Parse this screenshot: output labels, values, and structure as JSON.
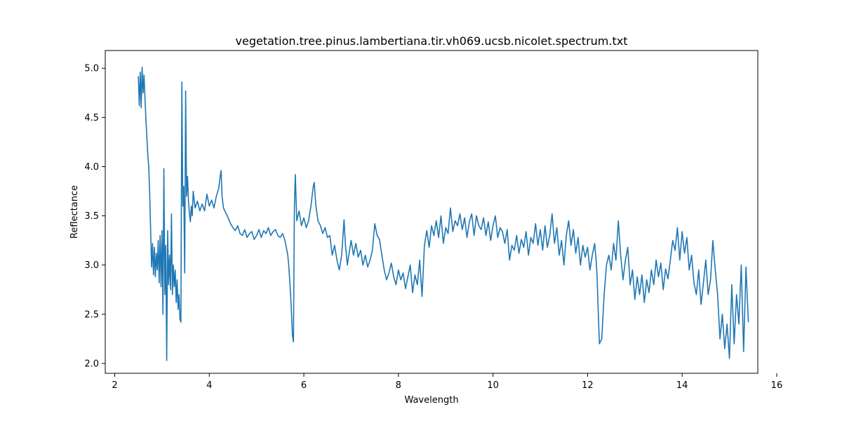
{
  "chart_data": {
    "type": "line",
    "title": "vegetation.tree.pinus.lambertiana.tir.vh069.ucsb.nicolet.spectrum.txt",
    "xlabel": "Wavelength",
    "ylabel": "Reflectance",
    "xlim": [
      1.8,
      15.6
    ],
    "ylim": [
      1.9,
      5.18
    ],
    "xticks": [
      2,
      4,
      6,
      8,
      10,
      12,
      14,
      16
    ],
    "yticks": [
      2.0,
      2.5,
      3.0,
      3.5,
      4.0,
      4.5,
      5.0
    ],
    "grid": false,
    "legend": "none",
    "series_color": "#1f77b4",
    "series": [
      {
        "x": [
          2.5,
          2.52,
          2.54,
          2.56,
          2.58,
          2.6,
          2.62,
          2.64,
          2.66,
          2.68,
          2.7,
          2.72,
          2.74,
          2.76,
          2.78,
          2.8,
          2.82,
          2.84,
          2.86,
          2.88,
          2.9,
          2.92,
          2.94,
          2.96,
          2.98,
          3.0,
          3.02,
          3.04,
          3.06,
          3.08,
          3.1,
          3.12,
          3.14,
          3.16,
          3.18,
          3.2,
          3.22,
          3.24,
          3.26,
          3.28,
          3.3,
          3.32,
          3.34,
          3.36,
          3.38,
          3.4,
          3.42,
          3.44,
          3.46,
          3.48,
          3.5,
          3.52,
          3.54,
          3.56,
          3.58,
          3.6,
          3.62,
          3.64,
          3.66,
          3.7,
          3.75,
          3.8,
          3.85,
          3.9,
          3.95,
          4.0,
          4.05,
          4.1,
          4.15,
          4.2,
          4.23,
          4.25,
          4.27,
          4.3,
          4.33,
          4.36,
          4.4,
          4.45,
          4.5,
          4.55,
          4.6,
          4.65,
          4.7,
          4.75,
          4.8,
          4.85,
          4.9,
          4.95,
          5.0,
          5.05,
          5.1,
          5.15,
          5.2,
          5.25,
          5.3,
          5.35,
          5.4,
          5.45,
          5.5,
          5.55,
          5.6,
          5.63,
          5.66,
          5.68,
          5.7,
          5.72,
          5.74,
          5.76,
          5.78,
          5.8,
          5.82,
          5.85,
          5.9,
          5.95,
          6.0,
          6.05,
          6.1,
          6.15,
          6.2,
          6.22,
          6.25,
          6.3,
          6.35,
          6.4,
          6.45,
          6.5,
          6.55,
          6.6,
          6.65,
          6.7,
          6.75,
          6.8,
          6.85,
          6.88,
          6.92,
          6.95,
          7.0,
          7.05,
          7.1,
          7.15,
          7.2,
          7.25,
          7.3,
          7.35,
          7.4,
          7.45,
          7.5,
          7.55,
          7.6,
          7.65,
          7.7,
          7.75,
          7.8,
          7.85,
          7.9,
          7.95,
          8.0,
          8.05,
          8.1,
          8.15,
          8.2,
          8.25,
          8.3,
          8.35,
          8.4,
          8.45,
          8.5,
          8.55,
          8.6,
          8.65,
          8.7,
          8.75,
          8.8,
          8.85,
          8.9,
          8.95,
          9.0,
          9.05,
          9.1,
          9.15,
          9.2,
          9.25,
          9.3,
          9.35,
          9.4,
          9.45,
          9.5,
          9.55,
          9.6,
          9.65,
          9.7,
          9.75,
          9.8,
          9.85,
          9.9,
          9.95,
          10.0,
          10.05,
          10.1,
          10.15,
          10.2,
          10.25,
          10.3,
          10.35,
          10.4,
          10.45,
          10.5,
          10.55,
          10.6,
          10.65,
          10.7,
          10.75,
          10.8,
          10.85,
          10.9,
          10.95,
          11.0,
          11.05,
          11.1,
          11.15,
          11.2,
          11.25,
          11.3,
          11.35,
          11.4,
          11.45,
          11.5,
          11.55,
          11.6,
          11.65,
          11.7,
          11.75,
          11.8,
          11.85,
          11.9,
          11.95,
          12.0,
          12.05,
          12.1,
          12.15,
          12.18,
          12.2,
          12.22,
          12.25,
          12.3,
          12.35,
          12.4,
          12.45,
          12.5,
          12.55,
          12.6,
          12.65,
          12.7,
          12.75,
          12.8,
          12.85,
          12.9,
          12.95,
          13.0,
          13.05,
          13.1,
          13.15,
          13.2,
          13.25,
          13.3,
          13.35,
          13.4,
          13.45,
          13.5,
          13.55,
          13.6,
          13.65,
          13.7,
          13.75,
          13.8,
          13.85,
          13.9,
          13.95,
          14.0,
          14.05,
          14.1,
          14.15,
          14.2,
          14.25,
          14.3,
          14.35,
          14.4,
          14.45,
          14.5,
          14.55,
          14.6,
          14.65,
          14.7,
          14.75,
          14.8,
          14.85,
          14.9,
          14.95,
          15.0,
          15.05,
          15.1,
          15.15,
          15.2,
          15.25,
          15.3,
          15.35,
          15.4
        ],
        "y": [
          4.92,
          4.62,
          4.96,
          4.6,
          5.01,
          4.75,
          4.93,
          4.7,
          4.48,
          4.3,
          4.12,
          4.0,
          3.72,
          3.35,
          2.98,
          3.22,
          2.9,
          3.18,
          2.88,
          3.12,
          2.95,
          3.25,
          2.82,
          3.3,
          2.78,
          3.35,
          2.5,
          3.98,
          2.7,
          3.2,
          2.03,
          3.35,
          2.8,
          3.1,
          2.75,
          3.52,
          2.7,
          3.0,
          2.78,
          2.95,
          2.62,
          2.85,
          2.55,
          2.7,
          2.45,
          2.42,
          4.86,
          3.6,
          3.8,
          2.92,
          4.77,
          3.7,
          3.9,
          3.65,
          3.52,
          3.44,
          3.6,
          3.5,
          3.75,
          3.58,
          3.65,
          3.55,
          3.62,
          3.55,
          3.72,
          3.6,
          3.66,
          3.58,
          3.7,
          3.78,
          3.9,
          3.96,
          3.7,
          3.58,
          3.55,
          3.52,
          3.48,
          3.42,
          3.38,
          3.35,
          3.4,
          3.32,
          3.3,
          3.36,
          3.28,
          3.32,
          3.34,
          3.26,
          3.3,
          3.36,
          3.28,
          3.35,
          3.32,
          3.38,
          3.3,
          3.34,
          3.36,
          3.3,
          3.28,
          3.32,
          3.25,
          3.18,
          3.1,
          3.0,
          2.85,
          2.7,
          2.5,
          2.28,
          2.22,
          3.6,
          3.92,
          3.45,
          3.55,
          3.4,
          3.48,
          3.38,
          3.45,
          3.6,
          3.8,
          3.84,
          3.62,
          3.45,
          3.4,
          3.32,
          3.38,
          3.28,
          3.3,
          3.1,
          3.2,
          3.05,
          2.95,
          3.1,
          3.46,
          3.2,
          3.0,
          3.1,
          3.25,
          3.1,
          3.22,
          3.08,
          3.15,
          3.0,
          3.1,
          2.98,
          3.05,
          3.15,
          3.42,
          3.3,
          3.26,
          3.1,
          2.95,
          2.85,
          2.92,
          3.02,
          2.88,
          2.8,
          2.95,
          2.85,
          2.92,
          2.76,
          2.88,
          3.0,
          2.72,
          2.9,
          2.8,
          3.05,
          2.68,
          3.2,
          3.35,
          3.18,
          3.4,
          3.3,
          3.45,
          3.28,
          3.5,
          3.22,
          3.38,
          3.32,
          3.58,
          3.34,
          3.45,
          3.4,
          3.52,
          3.36,
          3.48,
          3.28,
          3.44,
          3.52,
          3.3,
          3.5,
          3.4,
          3.36,
          3.48,
          3.3,
          3.44,
          3.25,
          3.4,
          3.5,
          3.28,
          3.38,
          3.34,
          3.22,
          3.36,
          3.05,
          3.2,
          3.15,
          3.3,
          3.12,
          3.26,
          3.18,
          3.34,
          3.1,
          3.28,
          3.22,
          3.42,
          3.2,
          3.36,
          3.15,
          3.4,
          3.18,
          3.3,
          3.52,
          3.22,
          3.38,
          3.1,
          3.25,
          3.0,
          3.3,
          3.45,
          3.2,
          3.36,
          3.12,
          3.28,
          3.0,
          3.2,
          3.08,
          3.18,
          2.95,
          3.1,
          3.22,
          3.05,
          2.9,
          2.6,
          2.2,
          2.25,
          2.7,
          3.0,
          3.1,
          2.95,
          3.22,
          3.05,
          3.45,
          3.1,
          2.85,
          3.05,
          3.18,
          2.8,
          2.95,
          2.65,
          2.88,
          2.7,
          2.9,
          2.62,
          2.85,
          2.72,
          2.95,
          2.8,
          3.05,
          2.88,
          3.02,
          2.75,
          2.96,
          2.86,
          3.05,
          3.25,
          3.15,
          3.38,
          3.05,
          3.34,
          3.12,
          3.28,
          2.95,
          3.1,
          2.82,
          2.7,
          2.95,
          2.6,
          2.82,
          3.05,
          2.7,
          2.85,
          3.25,
          2.95,
          2.7,
          2.25,
          2.5,
          2.15,
          2.4,
          2.05,
          2.8,
          2.2,
          2.7,
          2.4,
          3.0,
          2.12,
          2.98,
          2.42
        ]
      }
    ]
  }
}
